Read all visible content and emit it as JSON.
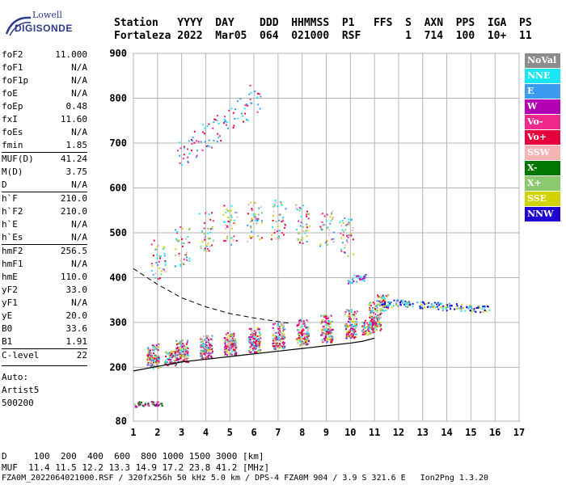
{
  "logo": {
    "line1": "Lowell",
    "line2": "DIGISONDE"
  },
  "header": {
    "labels": [
      "Station",
      "YYYY",
      "DAY",
      "DDD",
      "HHMMSS",
      "P1",
      "FFS",
      "S",
      "AXN",
      "PPS",
      "IGA",
      "PS"
    ],
    "values": [
      "Fortaleza",
      "2022",
      "Mar05",
      "064",
      "021000",
      "RSF",
      "",
      "1",
      "714",
      "100",
      "10+",
      "11"
    ]
  },
  "params": [
    {
      "k": "foF2",
      "v": "11.000"
    },
    {
      "k": "foF1",
      "v": "N/A"
    },
    {
      "k": "foF1p",
      "v": "N/A"
    },
    {
      "k": "foE",
      "v": "N/A"
    },
    {
      "k": "foEp",
      "v": "0.48"
    },
    {
      "k": "fxI",
      "v": "11.60"
    },
    {
      "k": "foEs",
      "v": "N/A"
    },
    {
      "k": "fmin",
      "v": "1.85"
    },
    {
      "k": "MUF(D)",
      "v": "41.24",
      "sep": true
    },
    {
      "k": "M(D)",
      "v": "3.75"
    },
    {
      "k": "D",
      "v": "N/A"
    },
    {
      "k": "h`F",
      "v": "210.0",
      "sep": true
    },
    {
      "k": "h`F2",
      "v": "210.0"
    },
    {
      "k": "h`E",
      "v": "N/A"
    },
    {
      "k": "h`Es",
      "v": "N/A"
    },
    {
      "k": "hmF2",
      "v": "256.5",
      "sep": true
    },
    {
      "k": "hmF1",
      "v": "N/A"
    },
    {
      "k": "hmE",
      "v": "110.0"
    },
    {
      "k": "yF2",
      "v": "33.0"
    },
    {
      "k": "yF1",
      "v": "N/A"
    },
    {
      "k": "yE",
      "v": "20.0"
    },
    {
      "k": "B0",
      "v": "33.6"
    },
    {
      "k": "B1",
      "v": "1.91"
    },
    {
      "k": "C-level",
      "v": "22",
      "sep": true
    }
  ],
  "auto": {
    "label": "Auto:",
    "name": "Artist5",
    "version": "500200"
  },
  "legend": [
    {
      "label": "NoVal",
      "color": "#8c8c8c"
    },
    {
      "label": "NNE",
      "color": "#19e6f5"
    },
    {
      "label": "E",
      "color": "#3c9bf0"
    },
    {
      "label": "W",
      "color": "#b400b4"
    },
    {
      "label": "Vo-",
      "color": "#f0288c"
    },
    {
      "label": "Vo+",
      "color": "#e6003c"
    },
    {
      "label": "SSW",
      "color": "#f5b4b4"
    },
    {
      "label": "X-",
      "color": "#007800"
    },
    {
      "label": "X+",
      "color": "#8cc86e"
    },
    {
      "label": "SSE",
      "color": "#d2d200"
    },
    {
      "label": "NNW",
      "color": "#1e00d2"
    }
  ],
  "footer": {
    "line1": "D     100  200  400  600  800 1000 1500 3000 [km]",
    "line2": "MUF  11.4 11.5 12.2 13.3 14.9 17.2 23.8 41.2 [MHz]",
    "line3": "FZA0M_2022064021000.RSF / 320fx256h 50 kHz 5.0 km / DPS-4 FZA0M 904 / 3.9 S 321.6 E   Ion2Png 1.3.20"
  },
  "chart_data": {
    "type": "scatter",
    "title": "",
    "xlabel": "",
    "ylabel": "",
    "xlim": [
      1,
      17
    ],
    "ylim": [
      80,
      900
    ],
    "xticks": [
      1,
      2,
      3,
      4,
      5,
      6,
      7,
      8,
      9,
      10,
      11,
      12,
      13,
      14,
      15,
      16,
      17
    ],
    "yticks": [
      80,
      200,
      300,
      400,
      500,
      600,
      700,
      800,
      900
    ],
    "grid": true,
    "legend_position": "right",
    "series": [
      {
        "ref": "o_trace",
        "x": [
          1.8,
          2.5,
          3.0,
          4.0,
          5.0,
          6.0,
          7.0,
          8.0,
          9.0,
          10.0,
          10.7,
          11.0
        ],
        "y": [
          215,
          222,
          228,
          236,
          244,
          250,
          258,
          265,
          272,
          282,
          290,
          300
        ]
      },
      {
        "ref": "x_trace",
        "x": [
          1.8,
          3.0,
          4.0,
          5.0,
          6.0,
          7.0,
          8.0,
          9.0,
          10.0,
          11.0,
          11.3
        ],
        "y": [
          235,
          245,
          255,
          262,
          272,
          282,
          290,
          300,
          312,
          330,
          345
        ]
      },
      {
        "ref": "f_echo_2hop",
        "x": [
          2.0,
          3.0,
          4.0,
          5.0,
          6.0,
          7.0,
          8.0,
          9.0,
          9.8
        ],
        "y": [
          440,
          470,
          505,
          520,
          525,
          530,
          520,
          505,
          490
        ]
      },
      {
        "ref": "f_echo_3hop",
        "x": [
          3.0,
          3.5,
          4.0,
          4.5,
          5.0,
          5.5,
          6.0
        ],
        "y": [
          680,
          700,
          715,
          735,
          755,
          775,
          800
        ]
      },
      {
        "ref": "spread_far",
        "x": [
          11.5,
          12.0,
          12.5,
          13.0,
          13.5,
          14.0,
          14.5,
          15.0,
          15.5
        ],
        "y": [
          340,
          345,
          342,
          340,
          338,
          336,
          335,
          333,
          332
        ]
      },
      {
        "ref": "sporadic_low",
        "x": [
          1.1,
          1.3,
          1.5,
          1.7,
          1.9,
          2.1
        ],
        "y": [
          118,
          120,
          118,
          121,
          119,
          120
        ]
      },
      {
        "ref": "column_10_4",
        "x": [
          10.0,
          10.2,
          10.4,
          10.6
        ],
        "y": [
          395,
          400,
          398,
          402
        ]
      }
    ],
    "profile": {
      "ref": "true_height_profile",
      "x": [
        1.0,
        2.0,
        3.0,
        4.0,
        5.0,
        6.0,
        7.0,
        8.0,
        9.0,
        10.0,
        10.5,
        11.0
      ],
      "y": [
        192,
        202,
        212,
        218,
        224,
        230,
        236,
        242,
        248,
        254,
        258,
        265
      ]
    },
    "model": {
      "ref": "model_curve",
      "x": [
        1.0,
        2.0,
        3.0,
        4.0,
        5.0,
        6.0,
        7.0,
        7.5
      ],
      "y": [
        420,
        385,
        355,
        335,
        320,
        310,
        302,
        298
      ]
    }
  }
}
